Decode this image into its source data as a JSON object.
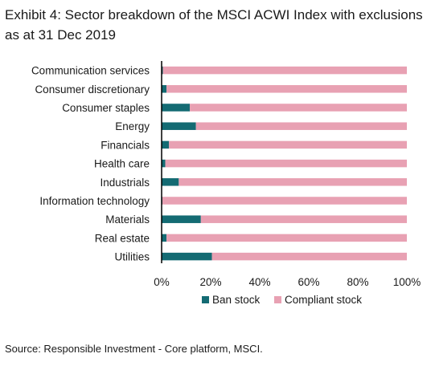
{
  "title": "Exhibit 4: Sector breakdown of the MSCI ACWI Index with exclusions as at 31 Dec 2019",
  "source": "Source: Responsible Investment - Core platform, MSCI.",
  "colors": {
    "ban": "#146b73",
    "compliant": "#e8a1b3"
  },
  "chart_data": {
    "type": "bar",
    "orientation": "horizontal",
    "stacked": true,
    "title": "Exhibit 4: Sector breakdown of the MSCI ACWI Index with exclusions as at 31 Dec 2019",
    "categories": [
      "Communication services",
      "Consumer discretionary",
      "Consumer staples",
      "Energy",
      "Financials",
      "Health care",
      "Industrials",
      "Information technology",
      "Materials",
      "Real estate",
      "Utilities"
    ],
    "series": [
      {
        "name": "Ban stock",
        "values": [
          0.5,
          2,
          11.5,
          14,
          3,
          1.5,
          7,
          0.3,
          16,
          2,
          20.5
        ]
      },
      {
        "name": "Compliant stock",
        "values": [
          99.5,
          98,
          88.5,
          86,
          97,
          98.5,
          93,
          99.7,
          84,
          98,
          79.5
        ]
      }
    ],
    "xlim": [
      0,
      100
    ],
    "xticks": [
      "0%",
      "20%",
      "40%",
      "60%",
      "80%",
      "100%"
    ],
    "legend": [
      "Ban stock",
      "Compliant stock"
    ],
    "legend_position": "bottom",
    "grid": false
  }
}
